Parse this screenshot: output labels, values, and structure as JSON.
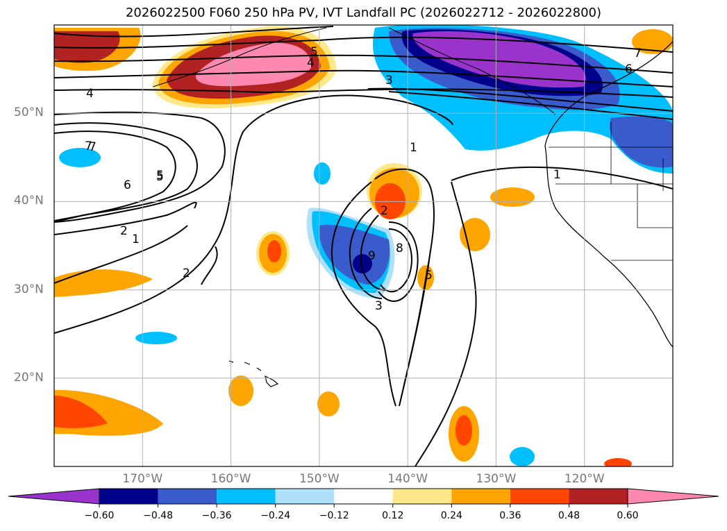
{
  "title": "2026022500 F060 250 hPa PV, IVT Landfall PC (2026022712 - 2026022800)",
  "map": {
    "lat_labels": [
      {
        "text": "50°N",
        "lat": 50
      },
      {
        "text": "40°N",
        "lat": 40
      },
      {
        "text": "30°N",
        "lat": 30
      },
      {
        "text": "20°N",
        "lat": 20
      }
    ],
    "lon_labels": [
      {
        "text": "170°W",
        "lon": -170
      },
      {
        "text": "160°W",
        "lon": -160
      },
      {
        "text": "150°W",
        "lon": -150
      },
      {
        "text": "140°W",
        "lon": -140
      },
      {
        "text": "130°W",
        "lon": -130
      },
      {
        "text": "120°W",
        "lon": -120
      }
    ],
    "extent": {
      "lon_min": -180,
      "lon_max": -110,
      "lat_min": 10,
      "lat_max": 60
    },
    "contour_labels": [
      "7",
      "5",
      "4",
      "4",
      "5",
      "3",
      "6",
      "7",
      "7",
      "6",
      "5",
      "2",
      "1",
      "2",
      "1",
      "1",
      "8",
      "9",
      "2",
      "3",
      "5"
    ]
  },
  "colorbar": {
    "ticks": [
      "−0.60",
      "−0.48",
      "−0.36",
      "−0.24",
      "−0.12",
      "0.12",
      "0.24",
      "0.36",
      "0.48",
      "0.60"
    ],
    "colors": [
      "#9933cc",
      "#00008b",
      "#3a5bcc",
      "#00bfff",
      "#aee0fa",
      "#ffffff",
      "#ffe88a",
      "#ffa500",
      "#ff4500",
      "#b22222",
      "#ff88b0"
    ]
  }
}
